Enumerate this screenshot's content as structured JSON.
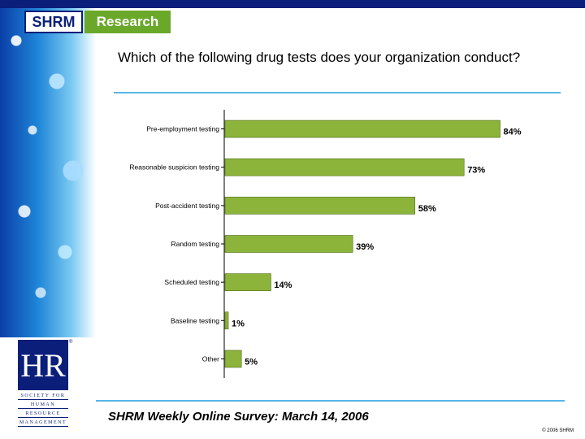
{
  "brand": {
    "shrm": "SHRM",
    "research": "Research"
  },
  "title": "Which of the following drug tests does your organization conduct?",
  "chart_data": {
    "type": "bar",
    "orientation": "horizontal",
    "categories": [
      "Pre-employment testing",
      "Reasonable suspicion testing",
      "Post-accident testing",
      "Random testing",
      "Scheduled testing",
      "Baseline testing",
      "Other"
    ],
    "values": [
      84,
      73,
      58,
      39,
      14,
      1,
      5
    ],
    "labels": [
      "84%",
      "73%",
      "58%",
      "39%",
      "14%",
      "1%",
      "5%"
    ],
    "title": "",
    "xlabel": "",
    "ylabel": "",
    "xlim": [
      0,
      100
    ],
    "colors": {
      "bar": "#8db43a",
      "bar_stroke": "#4d6a14",
      "axis": "#000000"
    }
  },
  "logo": {
    "mark": "HR",
    "reg": "®",
    "lines": [
      "SOCIETY FOR",
      "HUMAN",
      "RESOURCE",
      "MANAGEMENT"
    ]
  },
  "footer": {
    "source": "SHRM Weekly Online Survey: March 14, 2006",
    "copyright": "© 2006 SHRM"
  },
  "colors": {
    "navy": "#0b1f7a",
    "green": "#6aa82a",
    "rule": "#59b6e6"
  }
}
